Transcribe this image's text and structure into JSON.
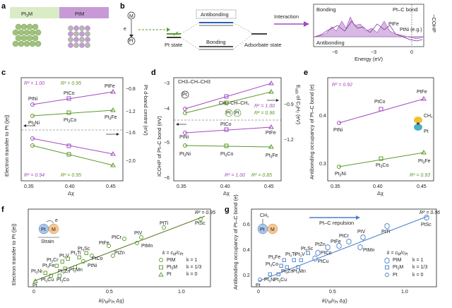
{
  "panels": [
    "a",
    "b",
    "c",
    "d",
    "e",
    "f",
    "g"
  ],
  "panel_a": {
    "left": "Pt3M",
    "right": "PtM"
  },
  "panel_b": {
    "m_label": "M",
    "e_label": "e",
    "pt_label": "Pt",
    "antibonding": "Antibonding",
    "bonding": "Bonding",
    "pt_state": "Pt state",
    "adsorbate_state": "Adsorbate state",
    "interaction": "Interaction",
    "pdos_bonding": "Bonding",
    "pdos_antibonding": "Antibonding",
    "pdos_title": "Pt–C bond",
    "ptfe": "PtFe",
    "ptni": "PtNi (e.g.)",
    "xlabel": "Energy (eV)",
    "ylabel": "−COHP",
    "xticks": [
      "−6",
      "−3",
      "0"
    ]
  },
  "panel_c": {
    "ylabel": "Electron transfer to Pt (|e|)",
    "y2label": "Pt d-band centre (eV)",
    "xlabel": "Δχ",
    "xticks": [
      "0.35",
      "0.40",
      "0.45"
    ],
    "yticks": [
      "−0.8",
      "−1.2",
      "−1.6",
      "−2.0"
    ],
    "r2": [
      "R² = 1.00",
      "R² = 0.95",
      "R² = 0.94",
      "R² = 0.95"
    ]
  },
  "panel_d": {
    "ylabel": "ICOHP of Pt–C bond (eV)",
    "y2label": "Eads of C3H7 (eV)",
    "xlabel": "Δχ",
    "xticks": [
      "0.35",
      "0.40",
      "0.45"
    ],
    "yticks": [
      "−3",
      "−4",
      "−5",
      "−6"
    ],
    "y2ticks": [
      "−0.9",
      "−1.2"
    ],
    "r2": [
      "R² = 1.00",
      "R² = 0.96",
      "R² = 1.00",
      "R² = 0.85"
    ],
    "mol": "CH3–CH–CH3"
  },
  "panel_e": {
    "ylabel": "Antibonding occupancy of Pt–C bond (e)",
    "xlabel": "Δχ",
    "xticks": [
      "0.35",
      "0.40",
      "0.45"
    ],
    "yticks": [
      "0.4",
      "0.3"
    ],
    "r2": [
      "R² = 0.92",
      "R² = 0.93"
    ],
    "ch3": "CH3",
    "pt": "Pt"
  },
  "panel_f": {
    "ylabel": "Electron transfer to Pt (|e|)",
    "xlabel": "k(rM/rPt Δχ)",
    "xticks": [
      "0",
      "0.5",
      "1.0"
    ],
    "r2": "R² = 0.95",
    "strain": "Strain",
    "legend_title": "k = cM/cPt",
    "legend": [
      {
        "n": "PtM",
        "k": "k = 1"
      },
      {
        "n": "Pt3M",
        "k": "k = 1/3"
      },
      {
        "n": "Pt",
        "k": "k = 0"
      }
    ],
    "points": [
      "PtSc",
      "PtTi",
      "PtV",
      "PtMn",
      "PtCr",
      "PtFe",
      "PtZn",
      "PtCo",
      "PtNi",
      "Pt3Sc",
      "Pt3Ti",
      "Pt3V",
      "Pt3Cr",
      "Pt3Fe",
      "Pt3Zn",
      "Pt3Mn",
      "Pt3Ni",
      "Pt3Cu",
      "Pt3Co",
      "Pt"
    ]
  },
  "panel_g": {
    "ylabel": "Antibonding occupancy of Pt–C bond (e)",
    "xlabel": "k(rM/rPt Δχ)",
    "xticks": [
      "0",
      "0.5",
      "1.0"
    ],
    "yticks": [
      "0.6",
      "0.4",
      "0.2"
    ],
    "r2": "R² = 0.96",
    "repulsion": "Pt–C repulsion",
    "legend_title": "k = cM/cPt",
    "legend": [
      {
        "n": "PtM",
        "k": "k = 1"
      },
      {
        "n": "Pt3M",
        "k": "k = 1/3"
      },
      {
        "n": "Pt",
        "k": "k = 0"
      }
    ],
    "points": [
      "PtSc",
      "PtTi",
      "PtV",
      "PtCr",
      "PtFe",
      "PtZn",
      "PtMn",
      "PtCo",
      "PtCu",
      "Pt3Sc",
      "Pt3Fe",
      "Pt3Ti",
      "Pt3V",
      "Pt3Co",
      "Pt3Zn",
      "Pt3Mn",
      "Pt3Ni",
      "Pt3Cu",
      "Pt"
    ]
  }
}
